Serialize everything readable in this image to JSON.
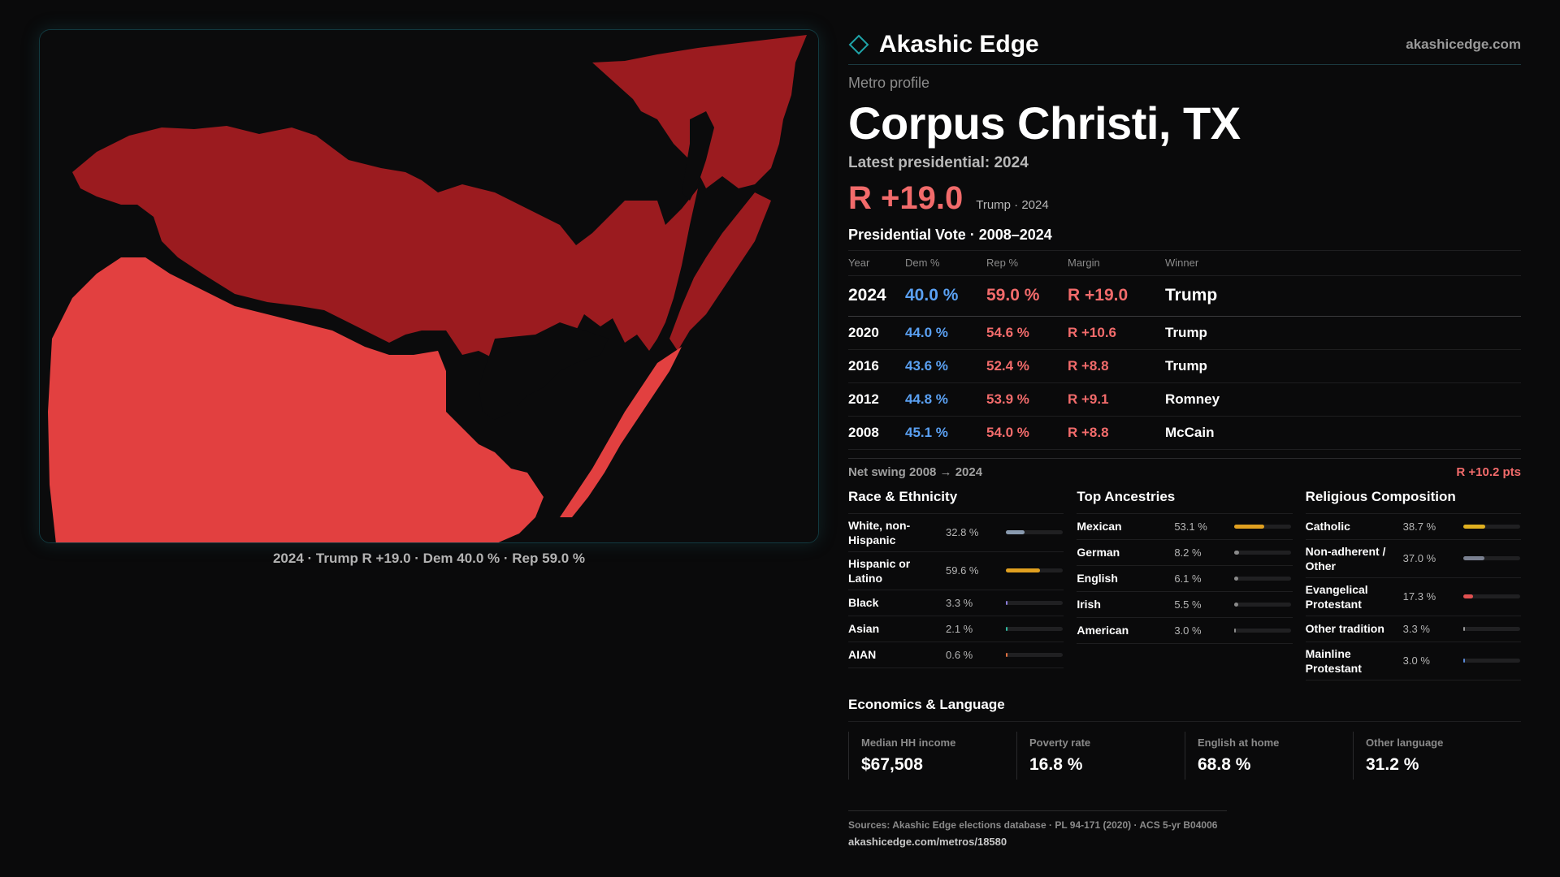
{
  "brand": {
    "name": "Akashic Edge",
    "site": "akashicedge.com"
  },
  "profile": {
    "eyebrow": "Metro profile",
    "title": "Corpus Christi, TX",
    "latest_label": "Latest presidential: 2024",
    "big_margin": "R +19.0",
    "margin_sub": "Trump · 2024"
  },
  "map": {
    "caption": "2024 · Trump R +19.0 · Dem 40.0 % · Rep 59.0 %",
    "colors": {
      "dark_red": "#9b1b1f",
      "light_red": "#e24040",
      "background": "#0b0b0c"
    }
  },
  "vote": {
    "title": "Presidential Vote · 2008–2024",
    "headers": [
      "Year",
      "Dem %",
      "Rep %",
      "Margin",
      "Winner"
    ],
    "rows": [
      {
        "year": "2024",
        "dem": "40.0 %",
        "rep": "59.0 %",
        "margin": "R +19.0",
        "winner": "Trump"
      },
      {
        "year": "2020",
        "dem": "44.0 %",
        "rep": "54.6 %",
        "margin": "R +10.6",
        "winner": "Trump"
      },
      {
        "year": "2016",
        "dem": "43.6 %",
        "rep": "52.4 %",
        "margin": "R +8.8",
        "winner": "Trump"
      },
      {
        "year": "2012",
        "dem": "44.8 %",
        "rep": "53.9 %",
        "margin": "R +9.1",
        "winner": "Romney"
      },
      {
        "year": "2008",
        "dem": "45.1 %",
        "rep": "54.0 %",
        "margin": "R +8.8",
        "winner": "McCain"
      }
    ],
    "swing_label": "Net swing 2008 → 2024",
    "swing_value": "R +10.2 pts"
  },
  "race": {
    "title": "Race & Ethnicity",
    "items": [
      {
        "label": "White, non-Hispanic",
        "value": "32.8 %",
        "frac": 0.328,
        "color": "#8a9bb0"
      },
      {
        "label": "Hispanic or Latino",
        "value": "59.6 %",
        "frac": 0.596,
        "color": "#e0a020"
      },
      {
        "label": "Black",
        "value": "3.3 %",
        "frac": 0.033,
        "color": "#8a7bd8"
      },
      {
        "label": "Asian",
        "value": "2.1 %",
        "frac": 0.021,
        "color": "#30b8a0"
      },
      {
        "label": "AIAN",
        "value": "0.6 %",
        "frac": 0.006,
        "color": "#e07040"
      }
    ]
  },
  "ancestry": {
    "title": "Top Ancestries",
    "items": [
      {
        "label": "Mexican",
        "value": "53.1 %",
        "frac": 0.531,
        "color": "#e0a020"
      },
      {
        "label": "German",
        "value": "8.2 %",
        "frac": 0.082,
        "color": "#8a8a8a"
      },
      {
        "label": "English",
        "value": "6.1 %",
        "frac": 0.061,
        "color": "#8a8a8a"
      },
      {
        "label": "Irish",
        "value": "5.5 %",
        "frac": 0.055,
        "color": "#8a8a8a"
      },
      {
        "label": "American",
        "value": "3.0 %",
        "frac": 0.03,
        "color": "#8a8a8a"
      }
    ]
  },
  "religion": {
    "title": "Religious Composition",
    "items": [
      {
        "label": "Catholic",
        "value": "38.7 %",
        "frac": 0.387,
        "color": "#e0b020"
      },
      {
        "label": "Non-adherent / Other",
        "value": "37.0 %",
        "frac": 0.37,
        "color": "#7a8090"
      },
      {
        "label": "Evangelical Protestant",
        "value": "17.3 %",
        "frac": 0.173,
        "color": "#e05050"
      },
      {
        "label": "Other tradition",
        "value": "3.3 %",
        "frac": 0.033,
        "color": "#9a9a9a"
      },
      {
        "label": "Mainline Protestant",
        "value": "3.0 %",
        "frac": 0.03,
        "color": "#5a8ad8"
      }
    ]
  },
  "economics": {
    "title": "Economics & Language",
    "items": [
      {
        "label": "Median HH income",
        "value": "$67,508"
      },
      {
        "label": "Poverty rate",
        "value": "16.8 %"
      },
      {
        "label": "English at home",
        "value": "68.8 %"
      },
      {
        "label": "Other language",
        "value": "31.2 %"
      }
    ]
  },
  "sources": {
    "line": "Sources: Akashic Edge elections database · PL 94-171 (2020) · ACS 5-yr B04006",
    "url": "akashicedge.com/metros/18580"
  }
}
